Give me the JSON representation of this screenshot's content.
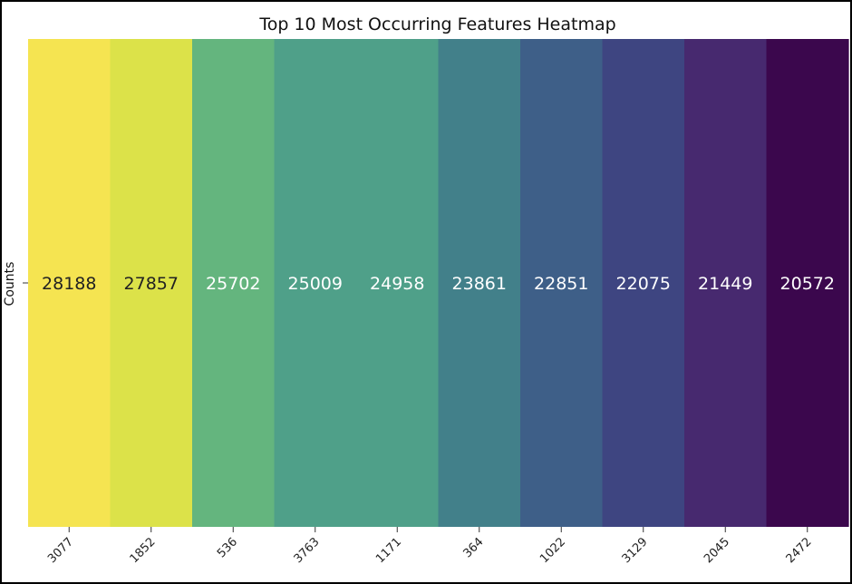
{
  "chart_data": {
    "type": "heatmap",
    "title": "Top 10 Most Occurring Features Heatmap",
    "xlabel": "",
    "ylabel": "",
    "row_labels": [
      "Counts"
    ],
    "categories": [
      "3077",
      "1852",
      "536",
      "3763",
      "1171",
      "364",
      "1022",
      "3129",
      "2045",
      "2472"
    ],
    "values": [
      28188,
      27857,
      25702,
      25009,
      24958,
      23861,
      22851,
      22075,
      21449,
      20572
    ],
    "colors": [
      "#f5e451",
      "#dce249",
      "#64b57e",
      "#4fa089",
      "#4fa089",
      "#42808a",
      "#3e5f88",
      "#3e4581",
      "#47296f",
      "#3b074d"
    ],
    "label_colors": [
      "#222222",
      "#222222",
      "#ffffff",
      "#ffffff",
      "#ffffff",
      "#ffffff",
      "#ffffff",
      "#ffffff",
      "#ffffff",
      "#ffffff"
    ],
    "colorbar": false,
    "grid": false
  }
}
